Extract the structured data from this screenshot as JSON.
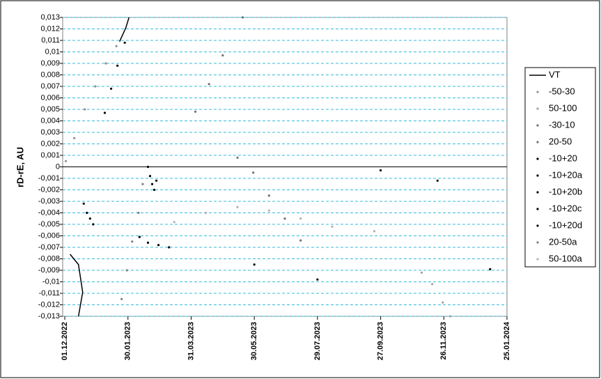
{
  "chart_data": {
    "type": "scatter",
    "y_label": "rD-rE, AU",
    "xlim": [
      44894,
      45316
    ],
    "ylim": [
      -0.013,
      0.013
    ],
    "xticks": [
      {
        "value": 44896,
        "label": "01.12.2022"
      },
      {
        "value": 44956,
        "label": "30.01.2023"
      },
      {
        "value": 45016,
        "label": "31.03.2023"
      },
      {
        "value": 45076,
        "label": "30.05.2023"
      },
      {
        "value": 45136,
        "label": "29.07.2023"
      },
      {
        "value": 45196,
        "label": "27.09.2023"
      },
      {
        "value": 45256,
        "label": "26.11.2023"
      },
      {
        "value": 45316,
        "label": "25.01.2024"
      }
    ],
    "yticks": [
      {
        "value": -0.013,
        "label": "-0,013"
      },
      {
        "value": -0.012,
        "label": "-0,012"
      },
      {
        "value": -0.011,
        "label": "-0,011"
      },
      {
        "value": -0.01,
        "label": "-0,01"
      },
      {
        "value": -0.009,
        "label": "-0,009"
      },
      {
        "value": -0.008,
        "label": "-0,008"
      },
      {
        "value": -0.007,
        "label": "-0,007"
      },
      {
        "value": -0.006,
        "label": "-0,006"
      },
      {
        "value": -0.005,
        "label": "-0,005"
      },
      {
        "value": -0.004,
        "label": "-0,004"
      },
      {
        "value": -0.003,
        "label": "-0,003"
      },
      {
        "value": -0.002,
        "label": "-0,002"
      },
      {
        "value": -0.001,
        "label": "-0,001"
      },
      0,
      {
        "value": 0.001,
        "label": "0,001"
      },
      {
        "value": 0.002,
        "label": "0,002"
      },
      {
        "value": 0.003,
        "label": "0,003"
      },
      {
        "value": 0.004,
        "label": "0,004"
      },
      {
        "value": 0.005,
        "label": "0,005"
      },
      {
        "value": 0.006,
        "label": "0,006"
      },
      {
        "value": 0.007,
        "label": "0,007"
      },
      {
        "value": 0.008,
        "label": "0,008"
      },
      {
        "value": 0.009,
        "label": "0,009"
      },
      {
        "value": 0.01,
        "label": "0,01"
      },
      {
        "value": 0.011,
        "label": "0,011"
      },
      {
        "value": 0.012,
        "label": "0,012"
      },
      {
        "value": 0.013,
        "label": "0,013"
      }
    ],
    "grid": true,
    "legend": "right",
    "series": [
      {
        "name": "VT",
        "color": "#000000",
        "line": true,
        "x": [
          44901,
          44909,
          44913,
          44909,
          null,
          44948,
          44954,
          44957
        ],
        "y": [
          -0.0076,
          -0.0085,
          -0.0109,
          -0.013,
          null,
          0.0109,
          0.0121,
          0.013
        ]
      },
      {
        "name": "-50-30",
        "color": "#909090",
        "x": [
          44897,
          44905,
          44915,
          44925,
          44935,
          44945
        ],
        "y": [
          0.0005,
          0.0025,
          0.005,
          0.007,
          0.009,
          0.0105
        ]
      },
      {
        "name": "50-100",
        "color": "#a0a0a0",
        "x": [
          45235,
          45245,
          45255,
          45262
        ],
        "y": [
          -0.0092,
          -0.0102,
          -0.0118,
          -0.013
        ]
      },
      {
        "name": "-30-10",
        "color": "#707070",
        "x": [
          45060,
          45075,
          45090,
          45105,
          45120
        ],
        "y": [
          0.0008,
          -0.0005,
          -0.0025,
          -0.0045,
          -0.0064
        ]
      },
      {
        "name": "20-50",
        "color": "#707070",
        "x": [
          45020,
          45033,
          45046,
          45065
        ],
        "y": [
          0.0048,
          0.0072,
          0.0097,
          0.013
        ]
      },
      {
        "name": "-10+20",
        "color": "#000000",
        "x": [
          44975,
          44977,
          44979,
          44981,
          44983
        ],
        "y": [
          0,
          -0.0008,
          -0.0015,
          -0.002,
          -0.0012
        ]
      },
      {
        "name": "-10+20a",
        "color": "#000000",
        "x": [
          44914,
          44917,
          44920,
          44923
        ],
        "y": [
          -0.0032,
          -0.004,
          -0.0045,
          -0.005
        ]
      },
      {
        "name": "-10+20b",
        "color": "#000000",
        "x": [
          44967,
          44975,
          44985,
          44995
        ],
        "y": [
          -0.0061,
          -0.0066,
          -0.0068,
          -0.007
        ]
      },
      {
        "name": "-10+20c",
        "color": "#000000",
        "x": [
          44934,
          44940,
          44946,
          44953
        ],
        "y": [
          0.0047,
          0.0068,
          0.0088,
          0.0108
        ]
      },
      {
        "name": "-10+20d",
        "color": "#000000",
        "x": [
          45076,
          45136,
          45196,
          45250,
          45300
        ],
        "y": [
          -0.0085,
          -0.0098,
          -0.0003,
          -0.0012,
          -0.0089
        ]
      },
      {
        "name": "20-50a",
        "color": "#808080",
        "x": [
          44950,
          44955,
          44960,
          44966,
          44970
        ],
        "y": [
          -0.0115,
          -0.009,
          -0.0065,
          -0.004,
          -0.0015
        ]
      },
      {
        "name": "50-100a",
        "color": "#b0b0b0",
        "x": [
          45000,
          45030,
          45060,
          45090,
          45120,
          45150,
          45190
        ],
        "y": [
          -0.0048,
          -0.004,
          -0.0035,
          -0.0038,
          -0.0045,
          -0.0052,
          -0.0056
        ]
      }
    ]
  }
}
